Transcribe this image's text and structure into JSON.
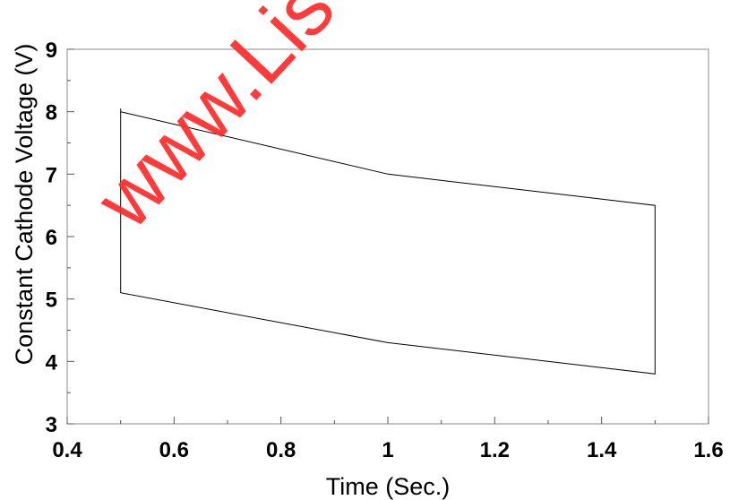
{
  "chart_data": {
    "type": "line",
    "xlabel": "Time (Sec.)",
    "ylabel": "Constant Cathode Voltage (V)",
    "xlim": [
      0.4,
      1.6
    ],
    "ylim": [
      3,
      9
    ],
    "xticks": [
      0.4,
      0.6,
      0.8,
      1,
      1.2,
      1.4,
      1.6
    ],
    "xtick_labels": [
      "0.4",
      "0.6",
      "0.8",
      "1",
      "1.2",
      "1.4",
      "1.6"
    ],
    "yticks": [
      3,
      4,
      5,
      6,
      7,
      8,
      9
    ],
    "ytick_labels": [
      "3",
      "4",
      "5",
      "6",
      "7",
      "8",
      "9"
    ],
    "grid": false,
    "series": [
      {
        "color": "#000000",
        "x": [
          0.5,
          0.5,
          1.0,
          1.5,
          1.5,
          1.0,
          0.5,
          0.5
        ],
        "y": [
          8.05,
          8.0,
          7.0,
          6.5,
          3.8,
          4.3,
          5.1,
          8.05
        ]
      }
    ]
  },
  "watermark": {
    "text": "www.Lis",
    "color": "#ff2a2a"
  }
}
